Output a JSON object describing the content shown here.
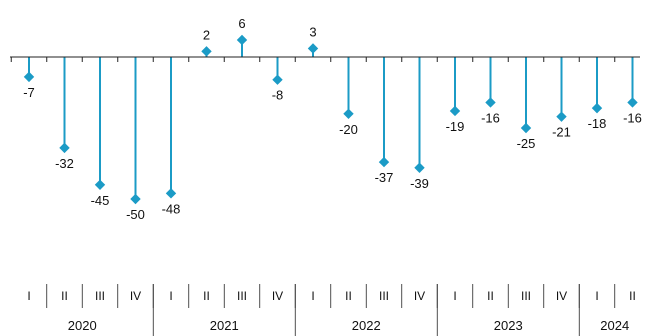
{
  "chart_data": {
    "type": "line",
    "title": "",
    "xlabel": "",
    "ylabel": "",
    "ylim": [
      -55,
      8
    ],
    "grid": false,
    "legend": "none",
    "colors": {
      "series": "#1b9bc6",
      "axis": "#222222",
      "text": "#111111"
    },
    "categories": [
      "I",
      "II",
      "III",
      "IV",
      "I",
      "II",
      "III",
      "IV",
      "I",
      "II",
      "III",
      "IV",
      "I",
      "II",
      "III",
      "IV",
      "I",
      "II"
    ],
    "years": [
      {
        "label": "2020",
        "quarters": 4
      },
      {
        "label": "2021",
        "quarters": 4
      },
      {
        "label": "2022",
        "quarters": 4
      },
      {
        "label": "2023",
        "quarters": 4
      },
      {
        "label": "2024",
        "quarters": 2
      }
    ],
    "series": [
      {
        "values": [
          -7,
          -32,
          -45,
          -50,
          -48,
          2,
          6,
          -8,
          3,
          -20,
          -37,
          -39,
          -19,
          -16,
          -25,
          -21,
          -18,
          -16
        ]
      }
    ]
  }
}
